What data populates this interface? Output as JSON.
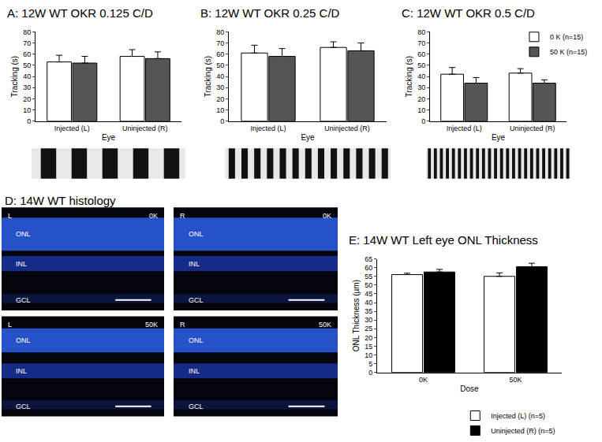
{
  "chart_data": [
    {
      "type": "bar",
      "title": "A: 12W WT OKR 0.125 C/D",
      "categories": [
        "Injected (L)",
        "Uninjected (R)"
      ],
      "x_label": "Eye",
      "y_label": "Tracking (s)",
      "ylim": [
        0,
        80
      ],
      "yticks": [
        0,
        10,
        20,
        30,
        40,
        50,
        60,
        70,
        80
      ],
      "series": [
        {
          "color": "#ffffff",
          "values": [
            53,
            58
          ],
          "errors": [
            6,
            6
          ]
        },
        {
          "color": "#555555",
          "values": [
            52,
            56
          ],
          "errors": [
            6,
            6
          ]
        }
      ]
    },
    {
      "type": "bar",
      "title": "B: 12W WT OKR 0.25 C/D",
      "categories": [
        "Injected (L)",
        "Uninjected (R)"
      ],
      "x_label": "Eye",
      "y_label": "Tracking (s)",
      "ylim": [
        0,
        80
      ],
      "yticks": [
        0,
        10,
        20,
        30,
        40,
        50,
        60,
        70,
        80
      ],
      "series": [
        {
          "color": "#ffffff",
          "values": [
            61,
            66
          ],
          "errors": [
            7,
            5
          ]
        },
        {
          "color": "#555555",
          "values": [
            58,
            63
          ],
          "errors": [
            7,
            7
          ]
        }
      ]
    },
    {
      "type": "bar",
      "title": "C: 12W WT OKR 0.5 C/D",
      "categories": [
        "Injected (L)",
        "Uninjected (R)"
      ],
      "x_label": "Eye",
      "y_label": "Tracking (s)",
      "ylim": [
        0,
        80
      ],
      "yticks": [
        0,
        10,
        20,
        30,
        40,
        50,
        60,
        70,
        80
      ],
      "legend": "upper right",
      "series": [
        {
          "name": "0 K (n=15)",
          "color": "#ffffff",
          "values": [
            42,
            43
          ],
          "errors": [
            6,
            4
          ]
        },
        {
          "name": "50 K (n=15)",
          "color": "#555555",
          "values": [
            34,
            34
          ],
          "errors": [
            5,
            3
          ]
        }
      ]
    },
    {
      "type": "bar",
      "title": "E: 14W WT Left eye ONL Thickness",
      "categories": [
        "0K",
        "50K"
      ],
      "x_label": "Dose",
      "y_label": "ONL Thickness (µm)",
      "ylim": [
        0,
        65
      ],
      "yticks": [
        0,
        5,
        10,
        15,
        20,
        25,
        30,
        35,
        40,
        45,
        50,
        55,
        60,
        65
      ],
      "legend": "lower right",
      "series": [
        {
          "name": "Injected (L) (n=5)",
          "color": "#ffffff",
          "values": [
            56,
            55
          ],
          "errors": [
            0.8,
            2
          ]
        },
        {
          "name": "Uninjected (R) (n=5)",
          "color": "#000000",
          "values": [
            57.5,
            60.5
          ],
          "errors": [
            1.5,
            2
          ]
        }
      ]
    }
  ],
  "histology": {
    "title": "D: 14W WT histology",
    "panels": [
      {
        "eye": "L",
        "dose": "0K",
        "layers": [
          "ONL",
          "INL",
          "GCL"
        ]
      },
      {
        "eye": "R",
        "dose": "0K",
        "layers": [
          "ONL",
          "INL",
          "GCL"
        ]
      },
      {
        "eye": "L",
        "dose": "50K",
        "layers": [
          "ONL",
          "INL",
          "GCL"
        ]
      },
      {
        "eye": "R",
        "dose": "50K",
        "layers": [
          "ONL",
          "INL",
          "GCL"
        ]
      }
    ]
  }
}
